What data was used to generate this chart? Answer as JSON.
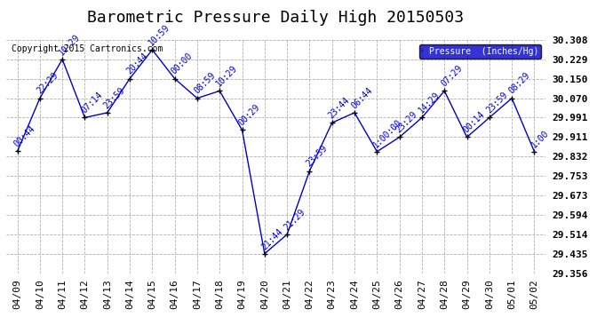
{
  "title": "Barometric Pressure Daily High 20150503",
  "copyright": "Copyright 2015 Cartronics.com",
  "legend_label": "Pressure  (Inches/Hg)",
  "background_color": "#ffffff",
  "plot_bg_color": "#ffffff",
  "line_color": "#0000cc",
  "point_color": "#000000",
  "grid_color": "#b0b0b0",
  "ylim": [
    29.356,
    30.308
  ],
  "yticks": [
    29.356,
    29.435,
    29.514,
    29.594,
    29.673,
    29.753,
    29.832,
    29.911,
    29.991,
    30.07,
    30.15,
    30.229,
    30.308
  ],
  "dates": [
    "04/09",
    "04/10",
    "04/11",
    "04/12",
    "04/13",
    "04/14",
    "04/15",
    "04/16",
    "04/17",
    "04/18",
    "04/19",
    "04/20",
    "04/21",
    "04/22",
    "04/23",
    "04/24",
    "04/25",
    "04/26",
    "04/27",
    "04/28",
    "04/29",
    "04/30",
    "05/01",
    "05/02"
  ],
  "values": [
    29.853,
    30.07,
    30.229,
    29.991,
    30.011,
    30.15,
    30.268,
    30.15,
    30.07,
    30.1,
    29.94,
    29.435,
    29.514,
    29.773,
    29.97,
    30.011,
    29.852,
    29.911,
    29.991,
    30.1,
    29.911,
    29.991,
    30.07,
    29.852
  ],
  "annotations": [
    "00:44",
    "22:29",
    "10:29",
    "07:14",
    "23:59",
    "20:44",
    "10:59",
    "00:00",
    "08:59",
    "10:29",
    "00:29",
    "21:44",
    "21:29",
    "23:59",
    "23:44",
    "06:44",
    "1:00:00",
    "23:29",
    "14:29",
    "07:29",
    "00:14",
    "23:59",
    "08:29",
    "1:00"
  ],
  "title_fontsize": 13,
  "tick_fontsize": 8,
  "annot_fontsize": 7,
  "ytick_fontsize": 8,
  "copyright_fontsize": 7
}
